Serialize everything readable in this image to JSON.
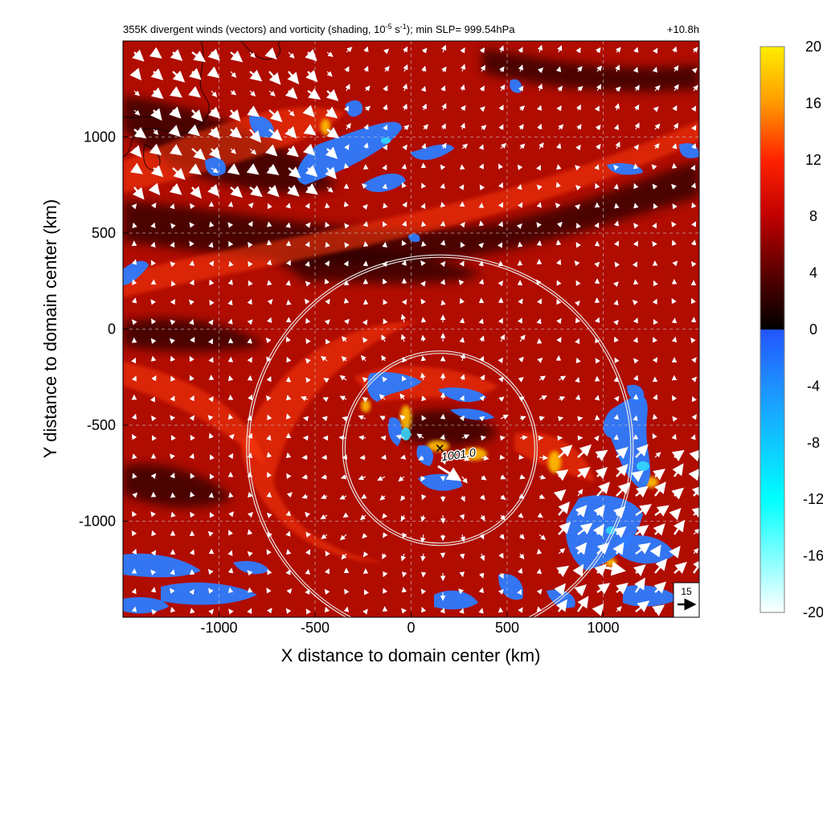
{
  "chart_data": {
    "type": "heatmap",
    "title_main": "355K divergent winds (vectors) and vorticity (shading, 10",
    "title_exp1": "-5",
    "title_mid": " s",
    "title_exp2": "-1",
    "title_end": "); min SLP= 999.54hPa",
    "time_label": "+10.8h",
    "xlabel": "X distance to domain center (km)",
    "ylabel": "Y distance to domain center (km)",
    "xlim": [
      -1500,
      1500
    ],
    "ylim": [
      -1500,
      1500
    ],
    "x_ticks": [
      -1000,
      -500,
      0,
      500,
      1000
    ],
    "y_ticks": [
      1000,
      500,
      0,
      -500,
      -1000
    ],
    "grid": "dashed",
    "colorbar": {
      "range": [
        -20,
        20
      ],
      "ticks": [
        20,
        16,
        12,
        8,
        4,
        0,
        -4,
        -8,
        -12,
        -16,
        -20
      ],
      "stops": [
        {
          "v": -20,
          "c": "#ffffff"
        },
        {
          "v": -12,
          "c": "#00ffff"
        },
        {
          "v": -4,
          "c": "#1e90ff"
        },
        {
          "v": 0,
          "c": "#2255ff"
        },
        {
          "v": 0.01,
          "c": "#000000"
        },
        {
          "v": 4,
          "c": "#5a0000"
        },
        {
          "v": 8,
          "c": "#c00000"
        },
        {
          "v": 12,
          "c": "#ff2200"
        },
        {
          "v": 16,
          "c": "#ff9900"
        },
        {
          "v": 20,
          "c": "#ffee00"
        }
      ]
    },
    "storm_center": {
      "x": 150,
      "y": -620,
      "label": "1001.0"
    },
    "radius_circles_km": [
      500,
      1000
    ],
    "reference_vector": {
      "label": "15",
      "magnitude": 15
    }
  }
}
